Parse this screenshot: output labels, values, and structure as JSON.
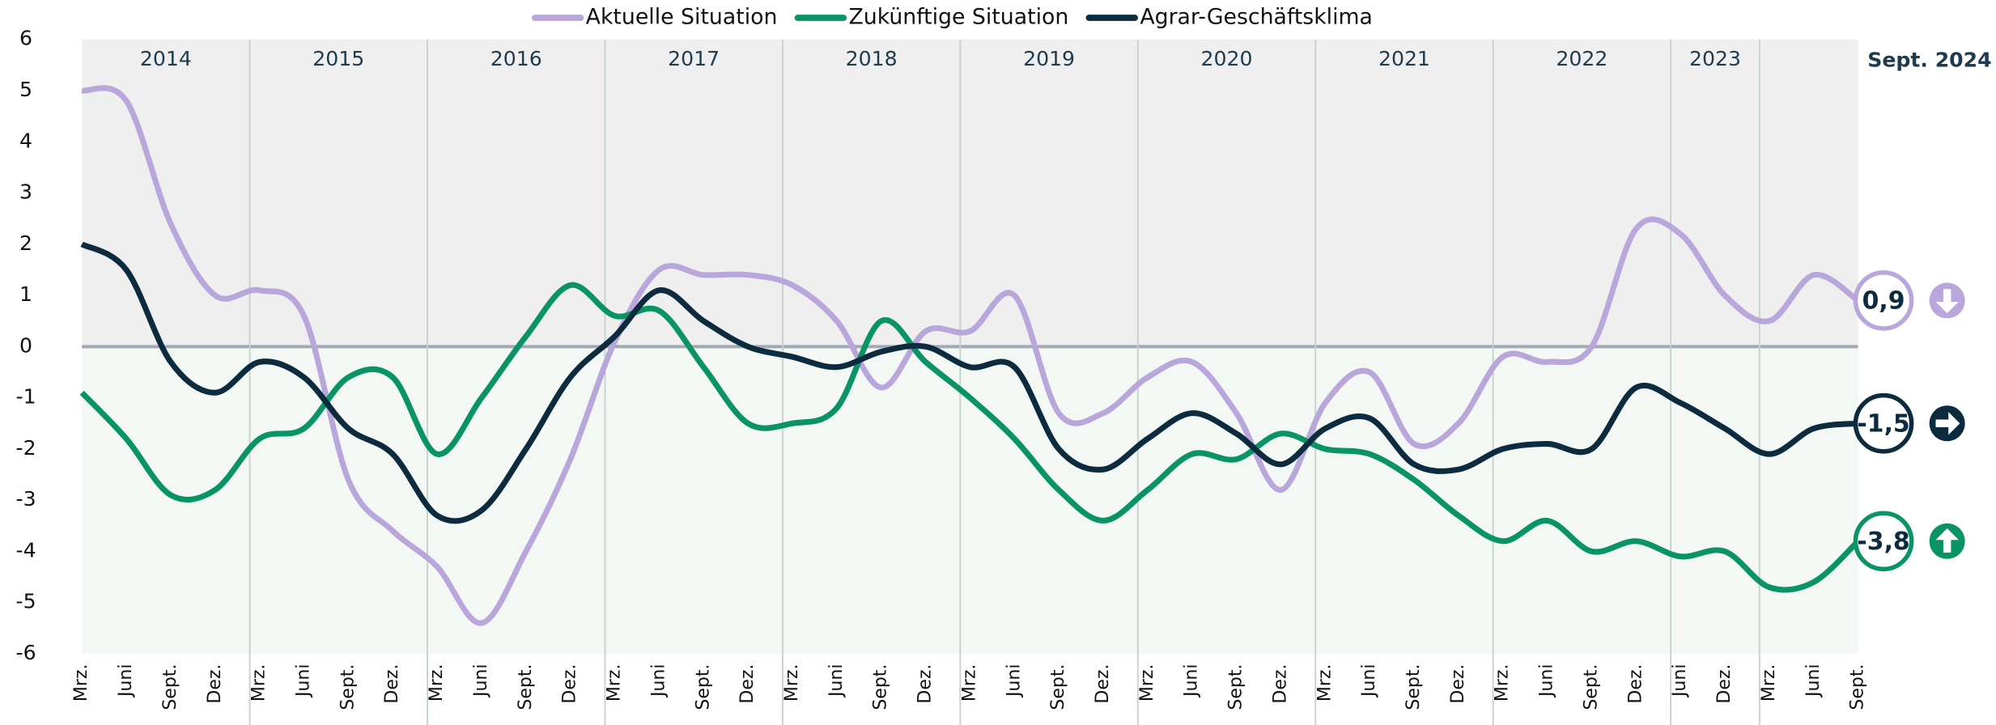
{
  "chart_data": {
    "type": "line",
    "latest": "Sept. 2024",
    "year_groups": [
      {
        "label": "2014",
        "categories": [
          "Mrz.",
          "Juni",
          "Sept.",
          "Dez."
        ]
      },
      {
        "label": "2015",
        "categories": [
          "Mrz.",
          "Juni",
          "Sept.",
          "Dez."
        ]
      },
      {
        "label": "2016",
        "categories": [
          "Mrz.",
          "Juni",
          "Sept.",
          "Dez."
        ]
      },
      {
        "label": "2017",
        "categories": [
          "Mrz.",
          "Juni",
          "Sept.",
          "Dez."
        ]
      },
      {
        "label": "2018",
        "categories": [
          "Mrz.",
          "Juni",
          "Sept.",
          "Dez."
        ]
      },
      {
        "label": "2019",
        "categories": [
          "Mrz.",
          "Juni",
          "Sept.",
          "Dez."
        ]
      },
      {
        "label": "2020",
        "categories": [
          "Mrz.",
          "Juni",
          "Sept.",
          "Dez."
        ]
      },
      {
        "label": "2021",
        "categories": [
          "Mrz.",
          "Juni",
          "Sept.",
          "Dez."
        ]
      },
      {
        "label": "2022",
        "categories": [
          "Mrz.",
          "Juni",
          "Sept.",
          "Dez."
        ]
      },
      {
        "label": "2023",
        "categories": [
          "Juni",
          "Dez."
        ]
      },
      {
        "label": null,
        "categories": [
          "Mrz.",
          "Juni",
          "Sept."
        ]
      }
    ],
    "ylim": [
      -6,
      6
    ],
    "yticks": [
      -6,
      -5,
      -4,
      -3,
      -2,
      -1,
      0,
      1,
      2,
      3,
      4,
      5,
      6
    ],
    "series": [
      {
        "name": "Aktuelle Situation",
        "color": "#b9a7dc",
        "trend": "down",
        "end_label": "0,9",
        "values": [
          5.0,
          4.8,
          2.4,
          1.0,
          1.1,
          0.6,
          -2.6,
          -3.6,
          -4.3,
          -5.4,
          -4.0,
          -2.2,
          0.1,
          1.5,
          1.4,
          1.4,
          1.2,
          0.5,
          -0.8,
          0.3,
          0.3,
          1.0,
          -1.3,
          -1.3,
          -0.6,
          -0.3,
          -1.3,
          -2.8,
          -1.1,
          -0.5,
          -1.9,
          -1.5,
          -0.2,
          -0.3,
          0.0,
          2.3,
          2.2,
          1.0,
          0.5,
          1.4,
          0.9
        ]
      },
      {
        "name": "Zukünftige Situation",
        "color": "#0a9465",
        "trend": "up",
        "end_label": "-3,8",
        "values": [
          -0.9,
          -1.8,
          -2.9,
          -2.8,
          -1.8,
          -1.6,
          -0.6,
          -0.6,
          -2.1,
          -1.0,
          0.2,
          1.2,
          0.6,
          0.7,
          -0.4,
          -1.5,
          -1.5,
          -1.2,
          0.5,
          -0.3,
          -1.0,
          -1.8,
          -2.8,
          -3.4,
          -2.8,
          -2.1,
          -2.2,
          -1.7,
          -2.0,
          -2.1,
          -2.6,
          -3.3,
          -3.8,
          -3.4,
          -4.0,
          -3.8,
          -4.1,
          -4.0,
          -4.7,
          -4.6,
          -3.8
        ]
      },
      {
        "name": "Agrar-Geschäftsklima",
        "color": "#0d2b3e",
        "trend": "right",
        "end_label": "-1,5",
        "values": [
          2.0,
          1.5,
          -0.3,
          -0.9,
          -0.3,
          -0.6,
          -1.6,
          -2.1,
          -3.3,
          -3.2,
          -2.0,
          -0.6,
          0.2,
          1.1,
          0.5,
          0.0,
          -0.2,
          -0.4,
          -0.1,
          0.0,
          -0.4,
          -0.4,
          -2.0,
          -2.4,
          -1.8,
          -1.3,
          -1.7,
          -2.3,
          -1.6,
          -1.4,
          -2.3,
          -2.4,
          -2.0,
          -1.9,
          -2.0,
          -0.8,
          -1.1,
          -1.6,
          -2.1,
          -1.6,
          -1.5
        ]
      }
    ]
  }
}
